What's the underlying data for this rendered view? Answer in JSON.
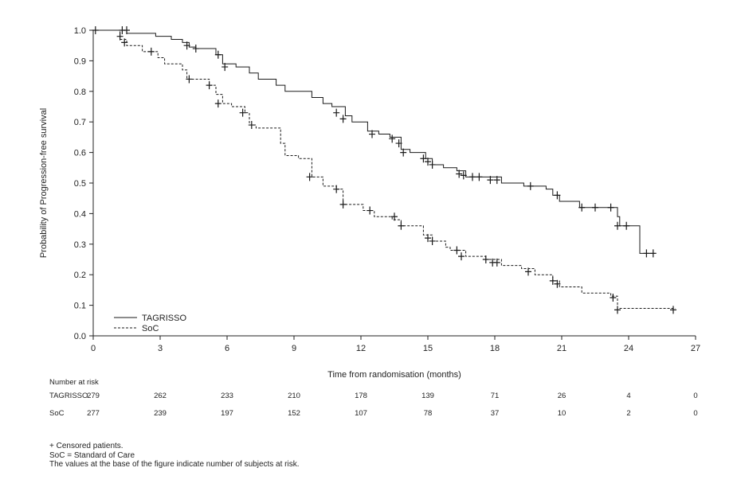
{
  "chart_data": {
    "type": "line",
    "title": "",
    "xlabel": "Time from randomisation (months)",
    "ylabel": "Probability of Progression-free survival",
    "xlim": [
      0,
      27
    ],
    "ylim": [
      0,
      1
    ],
    "x_ticks": [
      0,
      3,
      6,
      9,
      12,
      15,
      18,
      21,
      24,
      27
    ],
    "y_ticks": [
      "0.0",
      "0.1",
      "0.2",
      "0.3",
      "0.4",
      "0.5",
      "0.6",
      "0.7",
      "0.8",
      "0.9",
      "1.0"
    ],
    "grid": false,
    "legend_position": "bottom-left",
    "series": [
      {
        "name": "TAGRISSO",
        "line_style": "solid",
        "color": "#1a1a1a",
        "steps": [
          [
            0,
            1.0
          ],
          [
            1.5,
            0.99
          ],
          [
            2.8,
            0.98
          ],
          [
            3.5,
            0.97
          ],
          [
            4.0,
            0.96
          ],
          [
            4.3,
            0.945
          ],
          [
            4.6,
            0.94
          ],
          [
            5.5,
            0.92
          ],
          [
            5.8,
            0.89
          ],
          [
            6.4,
            0.88
          ],
          [
            7.0,
            0.86
          ],
          [
            7.4,
            0.84
          ],
          [
            8.2,
            0.82
          ],
          [
            8.6,
            0.8
          ],
          [
            9.8,
            0.78
          ],
          [
            10.3,
            0.76
          ],
          [
            10.7,
            0.75
          ],
          [
            11.3,
            0.72
          ],
          [
            11.6,
            0.7
          ],
          [
            12.3,
            0.67
          ],
          [
            12.8,
            0.66
          ],
          [
            13.3,
            0.65
          ],
          [
            13.8,
            0.61
          ],
          [
            14.2,
            0.6
          ],
          [
            14.9,
            0.58
          ],
          [
            15.2,
            0.56
          ],
          [
            15.7,
            0.55
          ],
          [
            16.3,
            0.54
          ],
          [
            16.7,
            0.52
          ],
          [
            18.3,
            0.5
          ],
          [
            19.3,
            0.49
          ],
          [
            20.3,
            0.48
          ],
          [
            20.6,
            0.46
          ],
          [
            20.9,
            0.44
          ],
          [
            21.8,
            0.42
          ],
          [
            23.5,
            0.39
          ],
          [
            23.6,
            0.36
          ],
          [
            24.5,
            0.27
          ]
        ],
        "end_x": 25.2,
        "censored": [
          [
            0.1,
            1.0
          ],
          [
            1.3,
            1.0
          ],
          [
            1.5,
            1.0
          ],
          [
            4.2,
            0.95
          ],
          [
            4.6,
            0.94
          ],
          [
            5.6,
            0.92
          ],
          [
            5.9,
            0.88
          ],
          [
            10.9,
            0.73
          ],
          [
            11.2,
            0.71
          ],
          [
            12.5,
            0.66
          ],
          [
            13.4,
            0.645
          ],
          [
            13.7,
            0.63
          ],
          [
            13.9,
            0.6
          ],
          [
            14.8,
            0.58
          ],
          [
            15.0,
            0.57
          ],
          [
            15.2,
            0.56
          ],
          [
            16.4,
            0.53
          ],
          [
            16.6,
            0.525
          ],
          [
            17.0,
            0.52
          ],
          [
            17.3,
            0.52
          ],
          [
            17.8,
            0.51
          ],
          [
            18.1,
            0.51
          ],
          [
            19.6,
            0.49
          ],
          [
            20.8,
            0.46
          ],
          [
            21.9,
            0.42
          ],
          [
            22.5,
            0.42
          ],
          [
            23.2,
            0.42
          ],
          [
            23.5,
            0.36
          ],
          [
            23.9,
            0.36
          ],
          [
            24.8,
            0.27
          ],
          [
            25.1,
            0.27
          ]
        ]
      },
      {
        "name": "SoC",
        "line_style": "dashed",
        "color": "#1a1a1a",
        "steps": [
          [
            0,
            1.0
          ],
          [
            1.2,
            0.97
          ],
          [
            1.5,
            0.95
          ],
          [
            2.2,
            0.93
          ],
          [
            2.9,
            0.91
          ],
          [
            3.2,
            0.89
          ],
          [
            4.0,
            0.87
          ],
          [
            4.2,
            0.84
          ],
          [
            5.2,
            0.82
          ],
          [
            5.5,
            0.79
          ],
          [
            5.8,
            0.76
          ],
          [
            6.2,
            0.75
          ],
          [
            6.8,
            0.73
          ],
          [
            7.0,
            0.69
          ],
          [
            7.3,
            0.68
          ],
          [
            8.2,
            0.68
          ],
          [
            8.4,
            0.63
          ],
          [
            8.6,
            0.59
          ],
          [
            9.2,
            0.58
          ],
          [
            9.8,
            0.52
          ],
          [
            10.3,
            0.49
          ],
          [
            10.9,
            0.48
          ],
          [
            11.2,
            0.43
          ],
          [
            12.1,
            0.41
          ],
          [
            12.6,
            0.39
          ],
          [
            13.4,
            0.38
          ],
          [
            13.8,
            0.36
          ],
          [
            14.8,
            0.33
          ],
          [
            15.2,
            0.31
          ],
          [
            15.8,
            0.29
          ],
          [
            16.0,
            0.28
          ],
          [
            16.7,
            0.26
          ],
          [
            17.6,
            0.25
          ],
          [
            18.3,
            0.23
          ],
          [
            19.2,
            0.22
          ],
          [
            19.8,
            0.2
          ],
          [
            20.6,
            0.18
          ],
          [
            20.9,
            0.16
          ],
          [
            21.9,
            0.14
          ],
          [
            23.2,
            0.13
          ],
          [
            23.5,
            0.09
          ]
        ],
        "end_x": 26.1,
        "censored": [
          [
            1.2,
            0.98
          ],
          [
            1.4,
            0.96
          ],
          [
            2.6,
            0.93
          ],
          [
            4.3,
            0.84
          ],
          [
            5.2,
            0.82
          ],
          [
            5.6,
            0.76
          ],
          [
            6.7,
            0.73
          ],
          [
            7.1,
            0.69
          ],
          [
            9.7,
            0.52
          ],
          [
            10.9,
            0.48
          ],
          [
            11.2,
            0.43
          ],
          [
            12.4,
            0.41
          ],
          [
            13.5,
            0.39
          ],
          [
            13.8,
            0.36
          ],
          [
            15.0,
            0.32
          ],
          [
            15.2,
            0.31
          ],
          [
            16.3,
            0.28
          ],
          [
            16.5,
            0.26
          ],
          [
            17.6,
            0.25
          ],
          [
            17.9,
            0.24
          ],
          [
            18.1,
            0.24
          ],
          [
            19.5,
            0.21
          ],
          [
            20.6,
            0.18
          ],
          [
            20.8,
            0.17
          ],
          [
            23.3,
            0.125
          ],
          [
            23.5,
            0.085
          ],
          [
            26.0,
            0.085
          ]
        ]
      }
    ],
    "at_risk": {
      "header": "Number at risk",
      "rows": [
        {
          "label": "TAGRISSO",
          "values": [
            "279",
            "262",
            "233",
            "210",
            "178",
            "139",
            "71",
            "26",
            "4",
            "0"
          ]
        },
        {
          "label": "SoC",
          "values": [
            "277",
            "239",
            "197",
            "152",
            "107",
            "78",
            "37",
            "10",
            "2",
            "0"
          ]
        }
      ]
    }
  },
  "footnotes": [
    "+ Censored patients.",
    "SoC = Standard of Care",
    "The values at the base of the figure indicate number of subjects at risk."
  ]
}
